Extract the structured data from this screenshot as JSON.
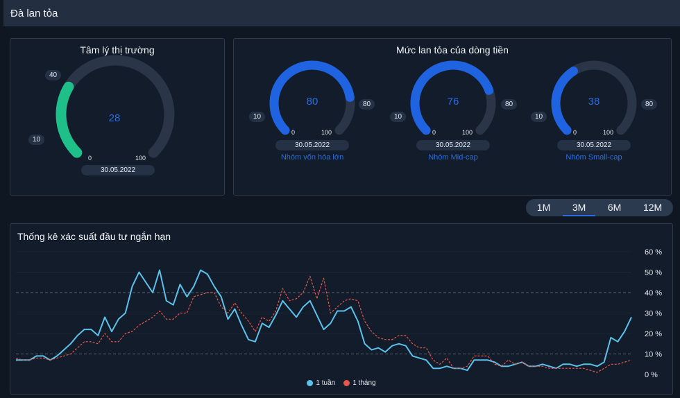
{
  "header": {
    "title": "Đà lan tỏa"
  },
  "sentiment": {
    "title": "Tâm lý thị trường",
    "value": 28,
    "min_label": "0",
    "max_label": "100",
    "low_marker": "10",
    "high_marker": "40",
    "date": "30.05.2022",
    "color": "#1fbf8a"
  },
  "spread": {
    "title": "Mức lan tỏa của dòng tiền",
    "groups": [
      {
        "name": "Nhóm vốn hóa lớn",
        "value": 80,
        "min_label": "0",
        "max_label": "100",
        "low_marker": "10",
        "high_marker": "80",
        "date": "30.05.2022"
      },
      {
        "name": "Nhóm Mid-cap",
        "value": 76,
        "min_label": "0",
        "max_label": "100",
        "low_marker": "10",
        "high_marker": "80",
        "date": "30.05.2022"
      },
      {
        "name": "Nhóm Small-cap",
        "value": 38,
        "min_label": "0",
        "max_label": "100",
        "low_marker": "10",
        "high_marker": "80",
        "date": "30.05.2022"
      }
    ],
    "color": "#1f63e0"
  },
  "range": {
    "options": [
      "1M",
      "3M",
      "6M",
      "12M"
    ],
    "selected": "3M"
  },
  "chart_data": {
    "type": "line",
    "title": "Thống kê xác suất đầu tư ngắn hạn",
    "ylim": [
      0,
      60
    ],
    "yticks": [
      "0 %",
      "10 %",
      "20 %",
      "30 %",
      "40 %",
      "50 %",
      "60 %"
    ],
    "reference_lines": [
      10,
      40
    ],
    "series": [
      {
        "name": "1 tuần",
        "color": "#5bc2ec",
        "style": "solid",
        "values": [
          7,
          7,
          7,
          9,
          9,
          7,
          9,
          12,
          15,
          19,
          22,
          22,
          19,
          28,
          21,
          27,
          30,
          43,
          50,
          45,
          40,
          51,
          36,
          34,
          44,
          38,
          43,
          51,
          49,
          43,
          38,
          27,
          32,
          24,
          17,
          16,
          25,
          23,
          29,
          36,
          32,
          28,
          33,
          36,
          29,
          22,
          25,
          31,
          31,
          33,
          26,
          15,
          12,
          13,
          11,
          14,
          15,
          14,
          9,
          8,
          7,
          3,
          3,
          4,
          3,
          3,
          2,
          7,
          7,
          7,
          6,
          4,
          4,
          5,
          6,
          4,
          4,
          5,
          4,
          3,
          5,
          5,
          4,
          5,
          5,
          4,
          6,
          18,
          16,
          21,
          28
        ]
      },
      {
        "name": "1 tháng",
        "color": "#e8584a",
        "style": "dashed",
        "values": [
          8,
          7,
          7,
          8,
          8,
          7,
          8,
          9,
          10,
          13,
          16,
          16,
          15,
          20,
          16,
          16,
          20,
          21,
          24,
          26,
          28,
          31,
          27,
          27,
          30,
          30,
          38,
          39,
          40,
          40,
          33,
          30,
          35,
          30,
          26,
          21,
          28,
          26,
          31,
          42,
          36,
          37,
          40,
          48,
          37,
          47,
          30,
          33,
          36,
          37,
          36,
          26,
          21,
          18,
          17,
          17,
          19,
          19,
          15,
          13,
          13,
          7,
          5,
          8,
          3,
          3,
          4,
          9,
          9,
          9,
          5,
          4,
          7,
          5,
          6,
          4,
          4,
          4,
          3,
          3,
          3,
          3,
          3,
          3,
          2,
          1,
          3,
          5,
          5,
          6,
          7
        ]
      }
    ]
  }
}
